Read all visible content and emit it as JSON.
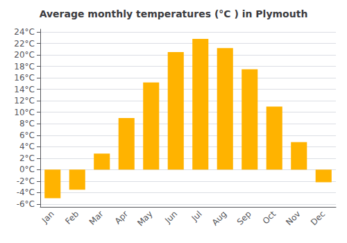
{
  "chart_data": {
    "type": "bar",
    "title": "Average monthly temperatures (°C ) in Plymouth",
    "categories": [
      "Jan",
      "Feb",
      "Mar",
      "Apr",
      "May",
      "Jun",
      "Jul",
      "Aug",
      "Sep",
      "Oct",
      "Nov",
      "Dec"
    ],
    "values": [
      -5.0,
      -3.5,
      2.8,
      9.0,
      15.2,
      20.5,
      22.8,
      21.2,
      17.5,
      11.0,
      4.8,
      -2.2
    ],
    "color": "#FFB300",
    "ylim": [
      -6.5,
      24.5
    ],
    "yticks": [
      {
        "value": -6,
        "label": "-6°C"
      },
      {
        "value": -4,
        "label": "-4°C"
      },
      {
        "value": -2,
        "label": "-2°C"
      },
      {
        "value": 0,
        "label": "0°C"
      },
      {
        "value": 2,
        "label": "2°C"
      },
      {
        "value": 4,
        "label": "4°C"
      },
      {
        "value": 6,
        "label": "6°C"
      },
      {
        "value": 8,
        "label": "8°C"
      },
      {
        "value": 10,
        "label": "10°C"
      },
      {
        "value": 12,
        "label": "12°C"
      },
      {
        "value": 14,
        "label": "14°C"
      },
      {
        "value": 16,
        "label": "16°C"
      },
      {
        "value": 18,
        "label": "18°C"
      },
      {
        "value": 20,
        "label": "20°C"
      },
      {
        "value": 22,
        "label": "22°C"
      },
      {
        "value": 24,
        "label": "24°C"
      }
    ],
    "grid": true
  }
}
